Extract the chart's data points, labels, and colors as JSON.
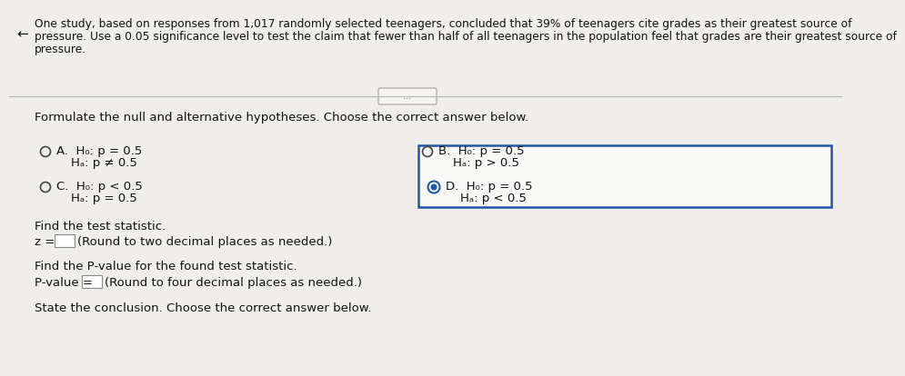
{
  "bg_color": "#f0eeea",
  "content_bg": "#f5f4f0",
  "header_text_line1": "One study, based on responses from 1,017 randomly selected teenagers, concluded that 39% of teenagers cite grades as their greatest source of",
  "header_text_line2": "pressure. Use a 0.05 significance level to test the claim that fewer than half of all teenagers in the population feel that grades are their greatest source of",
  "header_text_line3": "pressure.",
  "ellipsis_text": "...",
  "formulate_text": "Formulate the null and alternative hypotheses. Choose the correct answer below.",
  "optionA_line1": "A.  H₀: p = 0.5",
  "optionA_line2": "Hₐ: p ≠ 0.5",
  "optionB_line1": "B.  H₀: p = 0.5",
  "optionB_line2": "Hₐ: p > 0.5",
  "optionC_line1": "C.  H₀: p < 0.5",
  "optionC_line2": "Hₐ: p = 0.5",
  "optionD_line1": "D.  H₀: p = 0.5",
  "optionD_line2": "Hₐ: p < 0.5",
  "find_stat_text": "Find the test statistic.",
  "z_text": "z = ",
  "z_round_text": "(Round to two decimal places as needed.)",
  "find_pval_text": "Find the P-value for the found test statistic.",
  "pval_text": "P-value = ",
  "pval_round_text": "(Round to four decimal places as needed.)",
  "conclusion_text": "State the conclusion. Choose the correct answer below.",
  "box_edge_color": "#2255aa",
  "radio_fill_color": "#2255aa",
  "text_color": "#111111",
  "divider_color": "#bbbbbb",
  "header_fontsize": 8.8,
  "body_fontsize": 9.5
}
